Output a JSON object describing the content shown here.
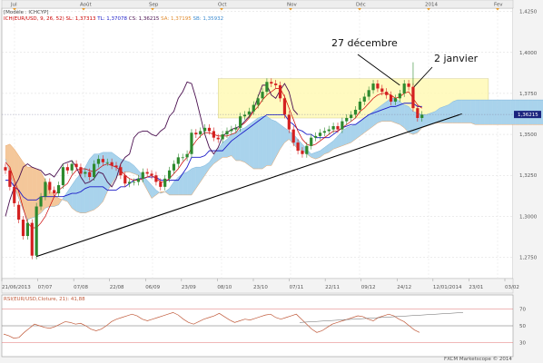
{
  "header": {
    "model": "[Modèle : ICHCYP]",
    "legend": [
      {
        "text": "ICH(EUR/USD, 9, 26, 52)",
        "color": "#cc0000"
      },
      {
        "text": "SL: 1,37313",
        "color": "#cc0000"
      },
      {
        "text": "TL: 1,37078",
        "color": "#1c1cc8"
      },
      {
        "text": "CS: 1,36215",
        "color": "#4b1050"
      },
      {
        "text": "SA: 1,37195",
        "color": "#e08a2c"
      },
      {
        "text": "SB: 1,35932",
        "color": "#3a8ad0"
      }
    ]
  },
  "rsi_label": "RSI(EUR/USD,Cloture, 21): 41,88",
  "watermark": "FXCM Marketscope © 2014",
  "annotations": [
    {
      "text": "27 décembre"
    },
    {
      "text": "2 janvier"
    }
  ],
  "colors": {
    "up": "#2e8a2e",
    "down": "#d42020",
    "tenkan": "#cc0000",
    "kijun": "#1c1cc8",
    "chikou": "#4b1050",
    "cloud_bull": "#a9d3ec",
    "cloud_bear": "#f4c79a",
    "rsi": "#c05a3a",
    "price_tag": "#1a237e",
    "range_box": "#fff9b5"
  },
  "chart_data": {
    "type": "candlestick",
    "instrument": "EUR/USD",
    "last_price": "1,36215",
    "y_ticks": [
      "1,4250",
      "1,4000",
      "1,3750",
      "1,3500",
      "1,3250",
      "1,3000",
      "1,2750"
    ],
    "ylim": [
      1.262,
      1.427
    ],
    "month_labels": [
      "Jul",
      "Août",
      "Sep",
      "Oct",
      "Nov",
      "Déc",
      "2014",
      "Fev"
    ],
    "date_labels": [
      "21/06/2013",
      "07/07",
      "07/08",
      "22/08",
      "06/09",
      "23/09",
      "08/10",
      "23/10",
      "07/11",
      "22/11",
      "09/12",
      "24/12",
      "12/01/2014",
      "23/01",
      "03/02"
    ],
    "rsi_levels": [
      {
        "value": 70,
        "label": "70"
      },
      {
        "value": 50,
        "label": "50"
      },
      {
        "value": 30,
        "label": "30"
      }
    ],
    "candles": [
      [
        1.33,
        1.328
      ],
      [
        1.328,
        1.318
      ],
      [
        1.318,
        1.308
      ],
      [
        1.307,
        1.298
      ],
      [
        1.298,
        1.288
      ],
      [
        1.288,
        1.296
      ],
      [
        1.296,
        1.276
      ],
      [
        1.276,
        1.306
      ],
      [
        1.306,
        1.312
      ],
      [
        1.312,
        1.321
      ],
      [
        1.321,
        1.316
      ],
      [
        1.316,
        1.314
      ],
      [
        1.314,
        1.319
      ],
      [
        1.319,
        1.33
      ],
      [
        1.33,
        1.328
      ],
      [
        1.328,
        1.332
      ],
      [
        1.332,
        1.33
      ],
      [
        1.33,
        1.326
      ],
      [
        1.326,
        1.327
      ],
      [
        1.327,
        1.324
      ],
      [
        1.324,
        1.332
      ],
      [
        1.332,
        1.335
      ],
      [
        1.335,
        1.333
      ],
      [
        1.333,
        1.333
      ],
      [
        1.333,
        1.331
      ],
      [
        1.331,
        1.33
      ],
      [
        1.33,
        1.325
      ],
      [
        1.325,
        1.32
      ],
      [
        1.32,
        1.321
      ],
      [
        1.321,
        1.321
      ],
      [
        1.321,
        1.323
      ],
      [
        1.323,
        1.327
      ],
      [
        1.327,
        1.326
      ],
      [
        1.326,
        1.325
      ],
      [
        1.325,
        1.321
      ],
      [
        1.321,
        1.318
      ],
      [
        1.318,
        1.323
      ],
      [
        1.323,
        1.328
      ],
      [
        1.328,
        1.332
      ],
      [
        1.332,
        1.336
      ],
      [
        1.336,
        1.336
      ],
      [
        1.336,
        1.338
      ],
      [
        1.338,
        1.351
      ],
      [
        1.351,
        1.35
      ],
      [
        1.35,
        1.352
      ],
      [
        1.352,
        1.354
      ],
      [
        1.354,
        1.352
      ],
      [
        1.352,
        1.348
      ],
      [
        1.348,
        1.347
      ],
      [
        1.347,
        1.35
      ],
      [
        1.35,
        1.352
      ],
      [
        1.352,
        1.353
      ],
      [
        1.353,
        1.354
      ],
      [
        1.354,
        1.361
      ],
      [
        1.361,
        1.362
      ],
      [
        1.362,
        1.364
      ],
      [
        1.364,
        1.368
      ],
      [
        1.368,
        1.372
      ],
      [
        1.372,
        1.376
      ],
      [
        1.376,
        1.382
      ],
      [
        1.382,
        1.381
      ],
      [
        1.381,
        1.38
      ],
      [
        1.38,
        1.372
      ],
      [
        1.372,
        1.362
      ],
      [
        1.362,
        1.353
      ],
      [
        1.353,
        1.345
      ],
      [
        1.345,
        1.34
      ],
      [
        1.34,
        1.338
      ],
      [
        1.338,
        1.343
      ],
      [
        1.343,
        1.348
      ],
      [
        1.348,
        1.349
      ],
      [
        1.349,
        1.351
      ],
      [
        1.351,
        1.352
      ],
      [
        1.352,
        1.353
      ],
      [
        1.353,
        1.355
      ],
      [
        1.355,
        1.353
      ],
      [
        1.353,
        1.358
      ],
      [
        1.358,
        1.36
      ],
      [
        1.36,
        1.362
      ],
      [
        1.362,
        1.365
      ],
      [
        1.365,
        1.37
      ],
      [
        1.37,
        1.373
      ],
      [
        1.373,
        1.377
      ],
      [
        1.377,
        1.381
      ],
      [
        1.381,
        1.378
      ],
      [
        1.378,
        1.376
      ],
      [
        1.376,
        1.374
      ],
      [
        1.374,
        1.37
      ],
      [
        1.37,
        1.372
      ],
      [
        1.372,
        1.375
      ],
      [
        1.375,
        1.381
      ],
      [
        1.381,
        1.379
      ],
      [
        1.379,
        1.366
      ],
      [
        1.366,
        1.36
      ],
      [
        1.36,
        1.362
      ]
    ],
    "cloud": [
      [
        1.335,
        1.343
      ],
      [
        1.326,
        1.344
      ],
      [
        1.318,
        1.341
      ],
      [
        1.311,
        1.337
      ],
      [
        1.304,
        1.333
      ],
      [
        1.298,
        1.33
      ],
      [
        1.299,
        1.33
      ],
      [
        1.3,
        1.329
      ],
      [
        1.302,
        1.327
      ],
      [
        1.305,
        1.322
      ],
      [
        1.306,
        1.316
      ],
      [
        1.306,
        1.313
      ],
      [
        1.307,
        1.311
      ],
      [
        1.311,
        1.31
      ],
      [
        1.315,
        1.309
      ],
      [
        1.319,
        1.305
      ],
      [
        1.323,
        1.303
      ],
      [
        1.326,
        1.302
      ],
      [
        1.33,
        1.302
      ],
      [
        1.335,
        1.303
      ],
      [
        1.338,
        1.304
      ],
      [
        1.338,
        1.306
      ],
      [
        1.339,
        1.309
      ],
      [
        1.339,
        1.315
      ],
      [
        1.339,
        1.32
      ],
      [
        1.337,
        1.324
      ],
      [
        1.335,
        1.326
      ],
      [
        1.334,
        1.327
      ],
      [
        1.333,
        1.327
      ],
      [
        1.331,
        1.326
      ],
      [
        1.328,
        1.325
      ],
      [
        1.325,
        1.321
      ],
      [
        1.322,
        1.316
      ],
      [
        1.319,
        1.311
      ],
      [
        1.316,
        1.313
      ],
      [
        1.314,
        1.315
      ],
      [
        1.315,
        1.315
      ],
      [
        1.317,
        1.313
      ],
      [
        1.321,
        1.313
      ],
      [
        1.324,
        1.313
      ],
      [
        1.326,
        1.313
      ],
      [
        1.327,
        1.313
      ],
      [
        1.329,
        1.313
      ],
      [
        1.33,
        1.317
      ],
      [
        1.33,
        1.321
      ],
      [
        1.331,
        1.325
      ],
      [
        1.333,
        1.329
      ],
      [
        1.337,
        1.332
      ],
      [
        1.341,
        1.334
      ],
      [
        1.345,
        1.336
      ],
      [
        1.347,
        1.336
      ],
      [
        1.35,
        1.337
      ],
      [
        1.351,
        1.334
      ],
      [
        1.353,
        1.334
      ],
      [
        1.354,
        1.333
      ],
      [
        1.356,
        1.331
      ],
      [
        1.358,
        1.329
      ],
      [
        1.36,
        1.329
      ],
      [
        1.361,
        1.329
      ],
      [
        1.361,
        1.331
      ],
      [
        1.359,
        1.331
      ],
      [
        1.358,
        1.336
      ],
      [
        1.356,
        1.341
      ],
      [
        1.354,
        1.345
      ],
      [
        1.352,
        1.347
      ],
      [
        1.35,
        1.344
      ],
      [
        1.347,
        1.341
      ],
      [
        1.344,
        1.34
      ],
      [
        1.341,
        1.338
      ],
      [
        1.338,
        1.336
      ],
      [
        1.339,
        1.335
      ],
      [
        1.34,
        1.336
      ],
      [
        1.342,
        1.338
      ],
      [
        1.344,
        1.339
      ],
      [
        1.346,
        1.341
      ],
      [
        1.349,
        1.342
      ],
      [
        1.352,
        1.343
      ],
      [
        1.354,
        1.344
      ],
      [
        1.355,
        1.345
      ],
      [
        1.356,
        1.347
      ],
      [
        1.358,
        1.349
      ],
      [
        1.36,
        1.351
      ],
      [
        1.362,
        1.353
      ],
      [
        1.364,
        1.355
      ],
      [
        1.366,
        1.357
      ],
      [
        1.368,
        1.358
      ],
      [
        1.37,
        1.358
      ],
      [
        1.372,
        1.358
      ],
      [
        1.372,
        1.357
      ],
      [
        1.37,
        1.356
      ],
      [
        1.368,
        1.354
      ],
      [
        1.367,
        1.351
      ],
      [
        1.364,
        1.35
      ],
      [
        1.363,
        1.351
      ],
      [
        1.362,
        1.354
      ],
      [
        1.362,
        1.355
      ],
      [
        1.363,
        1.356
      ],
      [
        1.364,
        1.357
      ],
      [
        1.366,
        1.357
      ],
      [
        1.367,
        1.357
      ],
      [
        1.368,
        1.357
      ],
      [
        1.37,
        1.357
      ],
      [
        1.371,
        1.357
      ],
      [
        1.371,
        1.357
      ],
      [
        1.371,
        1.357
      ],
      [
        1.371,
        1.357
      ],
      [
        1.371,
        1.356
      ],
      [
        1.371,
        1.356
      ],
      [
        1.371,
        1.356
      ],
      [
        1.371,
        1.356
      ],
      [
        1.371,
        1.356
      ],
      [
        1.371,
        1.356
      ],
      [
        1.371,
        1.356
      ],
      [
        1.371,
        1.356
      ],
      [
        1.371,
        1.356
      ],
      [
        1.371,
        1.356
      ],
      [
        1.371,
        1.356
      ],
      [
        1.371,
        1.356
      ],
      [
        1.371,
        1.356
      ],
      [
        1.371,
        1.356
      ],
      [
        1.371,
        1.356
      ],
      [
        1.371,
        1.356
      ],
      [
        1.371,
        1.356
      ]
    ],
    "tenkan": [
      1.333,
      1.33,
      1.322,
      1.315,
      1.305,
      1.296,
      1.293,
      1.293,
      1.296,
      1.3,
      1.306,
      1.312,
      1.316,
      1.318,
      1.32,
      1.325,
      1.328,
      1.329,
      1.329,
      1.328,
      1.327,
      1.329,
      1.331,
      1.332,
      1.331,
      1.33,
      1.328,
      1.325,
      1.323,
      1.322,
      1.322,
      1.323,
      1.324,
      1.325,
      1.323,
      1.321,
      1.321,
      1.323,
      1.326,
      1.329,
      1.333,
      1.336,
      1.342,
      1.346,
      1.349,
      1.351,
      1.351,
      1.35,
      1.349,
      1.349,
      1.349,
      1.35,
      1.351,
      1.355,
      1.357,
      1.36,
      1.364,
      1.367,
      1.371,
      1.374,
      1.376,
      1.378,
      1.378,
      1.373,
      1.366,
      1.359,
      1.352,
      1.347,
      1.344,
      1.343,
      1.344,
      1.346,
      1.348,
      1.35,
      1.352,
      1.352,
      1.354,
      1.356,
      1.358,
      1.36,
      1.364,
      1.366,
      1.369,
      1.372,
      1.374,
      1.375,
      1.375,
      1.374,
      1.372,
      1.373,
      1.375,
      1.376,
      1.372,
      1.368,
      1.366
    ],
    "kijun": [
      1.322,
      1.322,
      1.318,
      1.316,
      1.312,
      1.31,
      1.31,
      1.31,
      1.312,
      1.312,
      1.312,
      1.312,
      1.312,
      1.312,
      1.313,
      1.314,
      1.314,
      1.315,
      1.317,
      1.318,
      1.318,
      1.318,
      1.318,
      1.316,
      1.316,
      1.316,
      1.318,
      1.318,
      1.32,
      1.322,
      1.323,
      1.323,
      1.324,
      1.324,
      1.324,
      1.322,
      1.322,
      1.322,
      1.322,
      1.322,
      1.326,
      1.33,
      1.336,
      1.336,
      1.336,
      1.337,
      1.34,
      1.34,
      1.34,
      1.34,
      1.343,
      1.346,
      1.348,
      1.35,
      1.352,
      1.354,
      1.356,
      1.358,
      1.36,
      1.362,
      1.362,
      1.362,
      1.362,
      1.362,
      1.358,
      1.356,
      1.353,
      1.352,
      1.35,
      1.35,
      1.348,
      1.348,
      1.348,
      1.348,
      1.35,
      1.352,
      1.354,
      1.355,
      1.356,
      1.356,
      1.358,
      1.36,
      1.362,
      1.363,
      1.364,
      1.365,
      1.366,
      1.367,
      1.367,
      1.368,
      1.369,
      1.369,
      1.369,
      1.367,
      1.367
    ],
    "chikou": [
      1.3,
      1.31,
      1.318,
      1.323,
      1.33,
      1.332,
      1.33,
      1.329,
      1.328,
      1.325,
      1.326,
      1.324,
      1.328,
      1.332,
      1.333,
      1.334,
      1.33,
      1.324,
      1.32,
      1.321,
      1.323,
      1.327,
      1.326,
      1.321,
      1.318,
      1.323,
      1.332,
      1.336,
      1.338,
      1.348,
      1.351,
      1.352,
      1.352,
      1.35,
      1.349,
      1.352,
      1.354,
      1.361,
      1.364,
      1.372,
      1.376,
      1.382,
      1.381,
      1.372,
      1.361,
      1.35,
      1.342,
      1.338,
      1.342,
      1.349,
      1.351,
      1.353,
      1.354,
      1.355,
      1.358,
      1.361,
      1.365,
      1.373,
      1.38,
      1.38,
      1.374,
      1.372,
      1.377,
      1.381,
      1.376,
      1.365,
      1.362
    ],
    "rsi": [
      40,
      38,
      35,
      36,
      42,
      47,
      52,
      50,
      48,
      47,
      49,
      52,
      55,
      54,
      52,
      53,
      50,
      46,
      44,
      46,
      50,
      55,
      58,
      60,
      62,
      64,
      62,
      58,
      56,
      58,
      60,
      62,
      64,
      66,
      63,
      58,
      54,
      52,
      55,
      58,
      60,
      62,
      65,
      61,
      57,
      54,
      56,
      58,
      57,
      59,
      61,
      63,
      64,
      60,
      58,
      60,
      62,
      64,
      58,
      52,
      46,
      42,
      44,
      48,
      52,
      54,
      56,
      58,
      60,
      62,
      61,
      58,
      56,
      60,
      62,
      64,
      62,
      58,
      55,
      50,
      45,
      42
    ]
  }
}
